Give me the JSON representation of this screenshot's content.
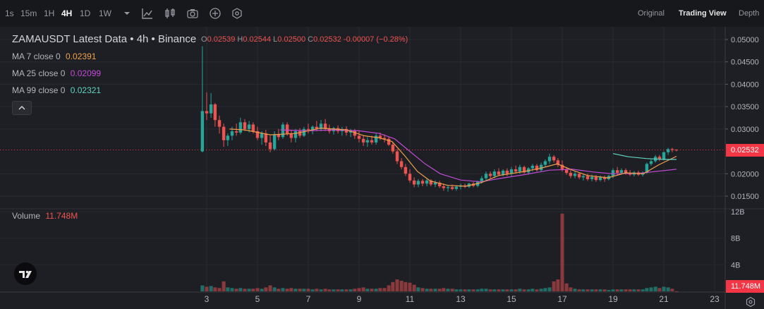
{
  "toolbar": {
    "timeframes": [
      "1s",
      "15m",
      "1H",
      "4H",
      "1D",
      "1W"
    ],
    "active_timeframe": "4H",
    "views": [
      "Original",
      "Trading View",
      "Depth"
    ],
    "active_view": "Trading View"
  },
  "legend": {
    "title": "ZAMAUSDT Latest Data • 4h • Binance",
    "ohlc": {
      "open_label": "O",
      "open": "0.02539",
      "high_label": "H",
      "high": "0.02544",
      "low_label": "L",
      "low": "0.02500",
      "close_label": "C",
      "close": "0.02532",
      "change": "-0.00007 (−0.28%)"
    },
    "ma7_label": "MA 7 close 0",
    "ma7_value": "0.02391",
    "ma25_label": "MA 25 close 0",
    "ma25_value": "0.02099",
    "ma99_label": "MA 99 close 0",
    "ma99_value": "0.02321",
    "volume_label": "Volume",
    "volume_value": "11.748M"
  },
  "price_axis": {
    "labels": [
      "0.05000",
      "0.04500",
      "0.04000",
      "0.03500",
      "0.03000",
      "0.02000",
      "0.01500"
    ],
    "current": "0.02532"
  },
  "volume_axis": {
    "labels": [
      "12B",
      "8B",
      "4B"
    ],
    "current": "11.748M"
  },
  "time_axis": {
    "labels": [
      "3",
      "5",
      "7",
      "9",
      "11",
      "13",
      "15",
      "17",
      "19",
      "21",
      "23"
    ]
  },
  "colors": {
    "up": "#26a69a",
    "down": "#ef5350",
    "ma7": "#f0a04b",
    "ma25": "#c04bd6",
    "ma99": "#5fd4c4",
    "price_tag": "#f23645"
  },
  "chart_data": {
    "type": "candlestick",
    "symbol": "ZAMAUSDT",
    "interval": "4h",
    "x_range_day": [
      1.0,
      23.6
    ],
    "y_range": [
      0.0105,
      0.0515
    ],
    "volume_range": [
      0,
      12.8
    ],
    "volume_unit": "B",
    "current_price": 0.02532,
    "candles": [
      {
        "d": 2.83,
        "o": 0.025,
        "h": 0.0485,
        "l": 0.0248,
        "c": 0.034,
        "v": 0.9
      },
      {
        "d": 3.0,
        "o": 0.034,
        "h": 0.0382,
        "l": 0.032,
        "c": 0.0335,
        "v": 0.7
      },
      {
        "d": 3.17,
        "o": 0.0335,
        "h": 0.038,
        "l": 0.0325,
        "c": 0.0355,
        "v": 0.8
      },
      {
        "d": 3.33,
        "o": 0.0355,
        "h": 0.0358,
        "l": 0.0305,
        "c": 0.032,
        "v": 0.6
      },
      {
        "d": 3.5,
        "o": 0.032,
        "h": 0.033,
        "l": 0.029,
        "c": 0.0305,
        "v": 0.5
      },
      {
        "d": 3.67,
        "o": 0.0305,
        "h": 0.0312,
        "l": 0.026,
        "c": 0.0275,
        "v": 1.5
      },
      {
        "d": 3.83,
        "o": 0.0275,
        "h": 0.029,
        "l": 0.0262,
        "c": 0.0285,
        "v": 0.6
      },
      {
        "d": 4.0,
        "o": 0.0285,
        "h": 0.0305,
        "l": 0.0275,
        "c": 0.0295,
        "v": 0.5
      },
      {
        "d": 4.17,
        "o": 0.0295,
        "h": 0.0312,
        "l": 0.0285,
        "c": 0.0292,
        "v": 0.4
      },
      {
        "d": 4.33,
        "o": 0.0292,
        "h": 0.0325,
        "l": 0.0288,
        "c": 0.0315,
        "v": 0.5
      },
      {
        "d": 4.5,
        "o": 0.0315,
        "h": 0.0322,
        "l": 0.0295,
        "c": 0.03,
        "v": 0.4
      },
      {
        "d": 4.67,
        "o": 0.03,
        "h": 0.0318,
        "l": 0.0292,
        "c": 0.031,
        "v": 0.4
      },
      {
        "d": 4.83,
        "o": 0.031,
        "h": 0.0315,
        "l": 0.029,
        "c": 0.0295,
        "v": 0.4
      },
      {
        "d": 5.0,
        "o": 0.0295,
        "h": 0.0305,
        "l": 0.0275,
        "c": 0.028,
        "v": 0.5
      },
      {
        "d": 5.17,
        "o": 0.028,
        "h": 0.0295,
        "l": 0.0265,
        "c": 0.029,
        "v": 0.4
      },
      {
        "d": 5.33,
        "o": 0.029,
        "h": 0.0298,
        "l": 0.0262,
        "c": 0.027,
        "v": 0.6
      },
      {
        "d": 5.5,
        "o": 0.027,
        "h": 0.0285,
        "l": 0.0248,
        "c": 0.0255,
        "v": 0.9
      },
      {
        "d": 5.67,
        "o": 0.0255,
        "h": 0.0295,
        "l": 0.0252,
        "c": 0.0288,
        "v": 0.6
      },
      {
        "d": 5.83,
        "o": 0.0288,
        "h": 0.03,
        "l": 0.0275,
        "c": 0.0282,
        "v": 0.4
      },
      {
        "d": 6.0,
        "o": 0.0282,
        "h": 0.0315,
        "l": 0.0278,
        "c": 0.031,
        "v": 0.5
      },
      {
        "d": 6.17,
        "o": 0.031,
        "h": 0.0315,
        "l": 0.0285,
        "c": 0.029,
        "v": 0.4
      },
      {
        "d": 6.33,
        "o": 0.029,
        "h": 0.0298,
        "l": 0.027,
        "c": 0.028,
        "v": 0.5
      },
      {
        "d": 6.5,
        "o": 0.028,
        "h": 0.03,
        "l": 0.027,
        "c": 0.0295,
        "v": 0.4
      },
      {
        "d": 6.67,
        "o": 0.0295,
        "h": 0.0302,
        "l": 0.028,
        "c": 0.0285,
        "v": 0.4
      },
      {
        "d": 6.83,
        "o": 0.0285,
        "h": 0.0305,
        "l": 0.0282,
        "c": 0.03,
        "v": 0.4
      },
      {
        "d": 7.0,
        "o": 0.03,
        "h": 0.0312,
        "l": 0.029,
        "c": 0.0298,
        "v": 0.4
      },
      {
        "d": 7.17,
        "o": 0.0298,
        "h": 0.0308,
        "l": 0.0288,
        "c": 0.0305,
        "v": 0.3
      },
      {
        "d": 7.33,
        "o": 0.0305,
        "h": 0.0318,
        "l": 0.0295,
        "c": 0.03,
        "v": 0.4
      },
      {
        "d": 7.5,
        "o": 0.03,
        "h": 0.032,
        "l": 0.0295,
        "c": 0.0312,
        "v": 0.3
      },
      {
        "d": 7.67,
        "o": 0.0312,
        "h": 0.0322,
        "l": 0.0295,
        "c": 0.03,
        "v": 0.4
      },
      {
        "d": 7.83,
        "o": 0.03,
        "h": 0.031,
        "l": 0.029,
        "c": 0.0295,
        "v": 0.3
      },
      {
        "d": 8.0,
        "o": 0.0295,
        "h": 0.0305,
        "l": 0.0288,
        "c": 0.0302,
        "v": 0.3
      },
      {
        "d": 8.17,
        "o": 0.0302,
        "h": 0.0308,
        "l": 0.029,
        "c": 0.0295,
        "v": 0.3
      },
      {
        "d": 8.33,
        "o": 0.0295,
        "h": 0.0305,
        "l": 0.0285,
        "c": 0.03,
        "v": 0.3
      },
      {
        "d": 8.5,
        "o": 0.03,
        "h": 0.0306,
        "l": 0.0285,
        "c": 0.0292,
        "v": 0.3
      },
      {
        "d": 8.67,
        "o": 0.0292,
        "h": 0.03,
        "l": 0.0282,
        "c": 0.0296,
        "v": 0.3
      },
      {
        "d": 8.83,
        "o": 0.0296,
        "h": 0.03,
        "l": 0.0278,
        "c": 0.0285,
        "v": 0.4
      },
      {
        "d": 9.0,
        "o": 0.0285,
        "h": 0.0295,
        "l": 0.027,
        "c": 0.0278,
        "v": 0.5
      },
      {
        "d": 9.17,
        "o": 0.0278,
        "h": 0.0285,
        "l": 0.0262,
        "c": 0.027,
        "v": 0.6
      },
      {
        "d": 9.33,
        "o": 0.027,
        "h": 0.0282,
        "l": 0.026,
        "c": 0.0275,
        "v": 0.4
      },
      {
        "d": 9.5,
        "o": 0.0275,
        "h": 0.0285,
        "l": 0.0265,
        "c": 0.027,
        "v": 0.4
      },
      {
        "d": 9.67,
        "o": 0.027,
        "h": 0.029,
        "l": 0.0265,
        "c": 0.0285,
        "v": 0.4
      },
      {
        "d": 9.83,
        "o": 0.0285,
        "h": 0.0292,
        "l": 0.0275,
        "c": 0.028,
        "v": 0.5
      },
      {
        "d": 10.0,
        "o": 0.028,
        "h": 0.0288,
        "l": 0.027,
        "c": 0.0278,
        "v": 0.5
      },
      {
        "d": 10.17,
        "o": 0.0278,
        "h": 0.0282,
        "l": 0.0262,
        "c": 0.0265,
        "v": 0.9
      },
      {
        "d": 10.33,
        "o": 0.0265,
        "h": 0.027,
        "l": 0.0245,
        "c": 0.025,
        "v": 1.4
      },
      {
        "d": 10.5,
        "o": 0.025,
        "h": 0.0255,
        "l": 0.0222,
        "c": 0.0228,
        "v": 1.8
      },
      {
        "d": 10.67,
        "o": 0.0228,
        "h": 0.0235,
        "l": 0.021,
        "c": 0.0215,
        "v": 1.6
      },
      {
        "d": 10.83,
        "o": 0.0215,
        "h": 0.0222,
        "l": 0.0195,
        "c": 0.02,
        "v": 1.4
      },
      {
        "d": 11.0,
        "o": 0.02,
        "h": 0.021,
        "l": 0.018,
        "c": 0.0185,
        "v": 1.3
      },
      {
        "d": 11.17,
        "o": 0.0185,
        "h": 0.0192,
        "l": 0.017,
        "c": 0.0176,
        "v": 1.0
      },
      {
        "d": 11.33,
        "o": 0.0176,
        "h": 0.0188,
        "l": 0.017,
        "c": 0.0184,
        "v": 0.6
      },
      {
        "d": 11.5,
        "o": 0.0184,
        "h": 0.0188,
        "l": 0.0172,
        "c": 0.0178,
        "v": 0.5
      },
      {
        "d": 11.67,
        "o": 0.0178,
        "h": 0.019,
        "l": 0.0172,
        "c": 0.0185,
        "v": 0.4
      },
      {
        "d": 11.83,
        "o": 0.0185,
        "h": 0.0188,
        "l": 0.0172,
        "c": 0.0176,
        "v": 0.4
      },
      {
        "d": 12.0,
        "o": 0.0176,
        "h": 0.0185,
        "l": 0.017,
        "c": 0.018,
        "v": 0.4
      },
      {
        "d": 12.17,
        "o": 0.018,
        "h": 0.0184,
        "l": 0.0168,
        "c": 0.0172,
        "v": 0.4
      },
      {
        "d": 12.33,
        "o": 0.0172,
        "h": 0.0178,
        "l": 0.0162,
        "c": 0.0168,
        "v": 0.5
      },
      {
        "d": 12.5,
        "o": 0.0168,
        "h": 0.0175,
        "l": 0.016,
        "c": 0.017,
        "v": 0.4
      },
      {
        "d": 12.67,
        "o": 0.017,
        "h": 0.0176,
        "l": 0.0163,
        "c": 0.0166,
        "v": 0.4
      },
      {
        "d": 12.83,
        "o": 0.0166,
        "h": 0.0174,
        "l": 0.0162,
        "c": 0.0171,
        "v": 0.3
      },
      {
        "d": 13.0,
        "o": 0.0171,
        "h": 0.0178,
        "l": 0.0165,
        "c": 0.0174,
        "v": 0.3
      },
      {
        "d": 13.17,
        "o": 0.0174,
        "h": 0.0178,
        "l": 0.0168,
        "c": 0.0171,
        "v": 0.3
      },
      {
        "d": 13.33,
        "o": 0.0171,
        "h": 0.018,
        "l": 0.0168,
        "c": 0.0178,
        "v": 0.3
      },
      {
        "d": 13.5,
        "o": 0.0178,
        "h": 0.0182,
        "l": 0.017,
        "c": 0.0173,
        "v": 0.3
      },
      {
        "d": 13.67,
        "o": 0.0173,
        "h": 0.0185,
        "l": 0.017,
        "c": 0.0182,
        "v": 0.3
      },
      {
        "d": 13.83,
        "o": 0.0182,
        "h": 0.0195,
        "l": 0.0178,
        "c": 0.019,
        "v": 0.4
      },
      {
        "d": 14.0,
        "o": 0.019,
        "h": 0.0205,
        "l": 0.0185,
        "c": 0.02,
        "v": 0.4
      },
      {
        "d": 14.17,
        "o": 0.02,
        "h": 0.0205,
        "l": 0.019,
        "c": 0.0195,
        "v": 0.3
      },
      {
        "d": 14.33,
        "o": 0.0195,
        "h": 0.021,
        "l": 0.019,
        "c": 0.0205,
        "v": 0.3
      },
      {
        "d": 14.5,
        "o": 0.0205,
        "h": 0.0212,
        "l": 0.0195,
        "c": 0.0198,
        "v": 0.3
      },
      {
        "d": 14.67,
        "o": 0.0198,
        "h": 0.021,
        "l": 0.0195,
        "c": 0.0207,
        "v": 0.3
      },
      {
        "d": 14.83,
        "o": 0.0207,
        "h": 0.0212,
        "l": 0.0195,
        "c": 0.02,
        "v": 0.3
      },
      {
        "d": 15.0,
        "o": 0.02,
        "h": 0.0215,
        "l": 0.0195,
        "c": 0.021,
        "v": 0.3
      },
      {
        "d": 15.17,
        "o": 0.021,
        "h": 0.0218,
        "l": 0.02,
        "c": 0.0205,
        "v": 0.3
      },
      {
        "d": 15.33,
        "o": 0.0205,
        "h": 0.022,
        "l": 0.02,
        "c": 0.0215,
        "v": 0.4
      },
      {
        "d": 15.5,
        "o": 0.0215,
        "h": 0.0218,
        "l": 0.02,
        "c": 0.0203,
        "v": 0.3
      },
      {
        "d": 15.67,
        "o": 0.0203,
        "h": 0.0215,
        "l": 0.0198,
        "c": 0.0212,
        "v": 0.3
      },
      {
        "d": 15.83,
        "o": 0.0212,
        "h": 0.0222,
        "l": 0.0205,
        "c": 0.0218,
        "v": 0.4
      },
      {
        "d": 16.0,
        "o": 0.0218,
        "h": 0.0222,
        "l": 0.0205,
        "c": 0.0208,
        "v": 0.3
      },
      {
        "d": 16.17,
        "o": 0.0208,
        "h": 0.0225,
        "l": 0.0205,
        "c": 0.022,
        "v": 0.4
      },
      {
        "d": 16.33,
        "o": 0.022,
        "h": 0.0232,
        "l": 0.0215,
        "c": 0.0228,
        "v": 0.5
      },
      {
        "d": 16.5,
        "o": 0.0228,
        "h": 0.0245,
        "l": 0.0222,
        "c": 0.0238,
        "v": 0.6
      },
      {
        "d": 16.67,
        "o": 0.0238,
        "h": 0.0242,
        "l": 0.0225,
        "c": 0.023,
        "v": 1.5
      },
      {
        "d": 16.83,
        "o": 0.023,
        "h": 0.0235,
        "l": 0.0215,
        "c": 0.022,
        "v": 1.8
      },
      {
        "d": 17.0,
        "o": 0.022,
        "h": 0.023,
        "l": 0.0205,
        "c": 0.021,
        "v": 11.7
      },
      {
        "d": 17.17,
        "o": 0.021,
        "h": 0.0215,
        "l": 0.0198,
        "c": 0.0202,
        "v": 1.2
      },
      {
        "d": 17.33,
        "o": 0.0202,
        "h": 0.0208,
        "l": 0.019,
        "c": 0.0195,
        "v": 0.6
      },
      {
        "d": 17.5,
        "o": 0.0195,
        "h": 0.0205,
        "l": 0.019,
        "c": 0.02,
        "v": 0.4
      },
      {
        "d": 17.67,
        "o": 0.02,
        "h": 0.0203,
        "l": 0.0188,
        "c": 0.0192,
        "v": 0.3
      },
      {
        "d": 17.83,
        "o": 0.0192,
        "h": 0.02,
        "l": 0.0185,
        "c": 0.0195,
        "v": 0.3
      },
      {
        "d": 18.0,
        "o": 0.0195,
        "h": 0.02,
        "l": 0.0184,
        "c": 0.0188,
        "v": 0.3
      },
      {
        "d": 18.17,
        "o": 0.0188,
        "h": 0.0198,
        "l": 0.0183,
        "c": 0.0193,
        "v": 0.3
      },
      {
        "d": 18.33,
        "o": 0.0193,
        "h": 0.0197,
        "l": 0.0182,
        "c": 0.0186,
        "v": 0.3
      },
      {
        "d": 18.5,
        "o": 0.0186,
        "h": 0.0196,
        "l": 0.0183,
        "c": 0.0192,
        "v": 0.3
      },
      {
        "d": 18.67,
        "o": 0.0192,
        "h": 0.0196,
        "l": 0.0182,
        "c": 0.0188,
        "v": 0.3
      },
      {
        "d": 18.83,
        "o": 0.0188,
        "h": 0.0198,
        "l": 0.0185,
        "c": 0.0195,
        "v": 0.2
      },
      {
        "d": 19.0,
        "o": 0.0195,
        "h": 0.0212,
        "l": 0.019,
        "c": 0.0208,
        "v": 0.3
      },
      {
        "d": 19.17,
        "o": 0.0208,
        "h": 0.0215,
        "l": 0.0198,
        "c": 0.0202,
        "v": 0.3
      },
      {
        "d": 19.33,
        "o": 0.0202,
        "h": 0.0212,
        "l": 0.0198,
        "c": 0.0208,
        "v": 0.3
      },
      {
        "d": 19.5,
        "o": 0.0208,
        "h": 0.0212,
        "l": 0.0198,
        "c": 0.0202,
        "v": 0.3
      },
      {
        "d": 19.67,
        "o": 0.0202,
        "h": 0.0208,
        "l": 0.0195,
        "c": 0.0198,
        "v": 0.3
      },
      {
        "d": 19.83,
        "o": 0.0198,
        "h": 0.0206,
        "l": 0.0194,
        "c": 0.0203,
        "v": 0.3
      },
      {
        "d": 20.0,
        "o": 0.0203,
        "h": 0.0207,
        "l": 0.0195,
        "c": 0.0198,
        "v": 0.3
      },
      {
        "d": 20.17,
        "o": 0.0198,
        "h": 0.0205,
        "l": 0.0194,
        "c": 0.0202,
        "v": 0.3
      },
      {
        "d": 20.33,
        "o": 0.0202,
        "h": 0.0225,
        "l": 0.02,
        "c": 0.0222,
        "v": 0.5
      },
      {
        "d": 20.5,
        "o": 0.0222,
        "h": 0.0232,
        "l": 0.0218,
        "c": 0.0228,
        "v": 0.6
      },
      {
        "d": 20.67,
        "o": 0.0228,
        "h": 0.0242,
        "l": 0.0225,
        "c": 0.0238,
        "v": 0.7
      },
      {
        "d": 20.83,
        "o": 0.0238,
        "h": 0.0242,
        "l": 0.0228,
        "c": 0.0232,
        "v": 0.5
      },
      {
        "d": 21.0,
        "o": 0.0232,
        "h": 0.025,
        "l": 0.023,
        "c": 0.0248,
        "v": 0.7
      },
      {
        "d": 21.17,
        "o": 0.0248,
        "h": 0.0258,
        "l": 0.0242,
        "c": 0.0255,
        "v": 0.6
      },
      {
        "d": 21.33,
        "o": 0.0255,
        "h": 0.0258,
        "l": 0.0248,
        "c": 0.0253,
        "v": 0.4
      },
      {
        "d": 21.5,
        "o": 0.02539,
        "h": 0.02544,
        "l": 0.025,
        "c": 0.02532,
        "v": 0.012
      }
    ],
    "ma7_points": [
      [
        3.9,
        0.03
      ],
      [
        4.5,
        0.0298
      ],
      [
        5.5,
        0.0287
      ],
      [
        6.5,
        0.029
      ],
      [
        7.5,
        0.0302
      ],
      [
        8.5,
        0.0298
      ],
      [
        9.2,
        0.0285
      ],
      [
        9.8,
        0.028
      ],
      [
        10.3,
        0.0272
      ],
      [
        10.8,
        0.024
      ],
      [
        11.3,
        0.0205
      ],
      [
        11.8,
        0.0184
      ],
      [
        12.5,
        0.0174
      ],
      [
        13.2,
        0.0172
      ],
      [
        13.8,
        0.018
      ],
      [
        14.5,
        0.0196
      ],
      [
        15.5,
        0.0205
      ],
      [
        16.2,
        0.0213
      ],
      [
        16.8,
        0.0222
      ],
      [
        17.4,
        0.0208
      ],
      [
        18.0,
        0.0196
      ],
      [
        18.8,
        0.0191
      ],
      [
        19.5,
        0.0202
      ],
      [
        20.2,
        0.02
      ],
      [
        20.8,
        0.022
      ],
      [
        21.5,
        0.0239
      ]
    ],
    "ma25_points": [
      [
        5.9,
        0.0298
      ],
      [
        7.0,
        0.0296
      ],
      [
        8.0,
        0.0298
      ],
      [
        9.0,
        0.0296
      ],
      [
        9.8,
        0.029
      ],
      [
        10.4,
        0.0278
      ],
      [
        11.0,
        0.025
      ],
      [
        11.6,
        0.0222
      ],
      [
        12.2,
        0.02
      ],
      [
        13.0,
        0.0186
      ],
      [
        13.8,
        0.0182
      ],
      [
        14.6,
        0.019
      ],
      [
        15.5,
        0.0198
      ],
      [
        16.5,
        0.0208
      ],
      [
        17.4,
        0.021
      ],
      [
        18.2,
        0.0204
      ],
      [
        19.0,
        0.02
      ],
      [
        20.0,
        0.0201
      ],
      [
        21.5,
        0.021
      ]
    ],
    "ma99_points": [
      [
        19.0,
        0.0245
      ],
      [
        19.6,
        0.0238
      ],
      [
        20.3,
        0.0234
      ],
      [
        21.0,
        0.0232
      ],
      [
        21.5,
        0.0232
      ]
    ]
  }
}
